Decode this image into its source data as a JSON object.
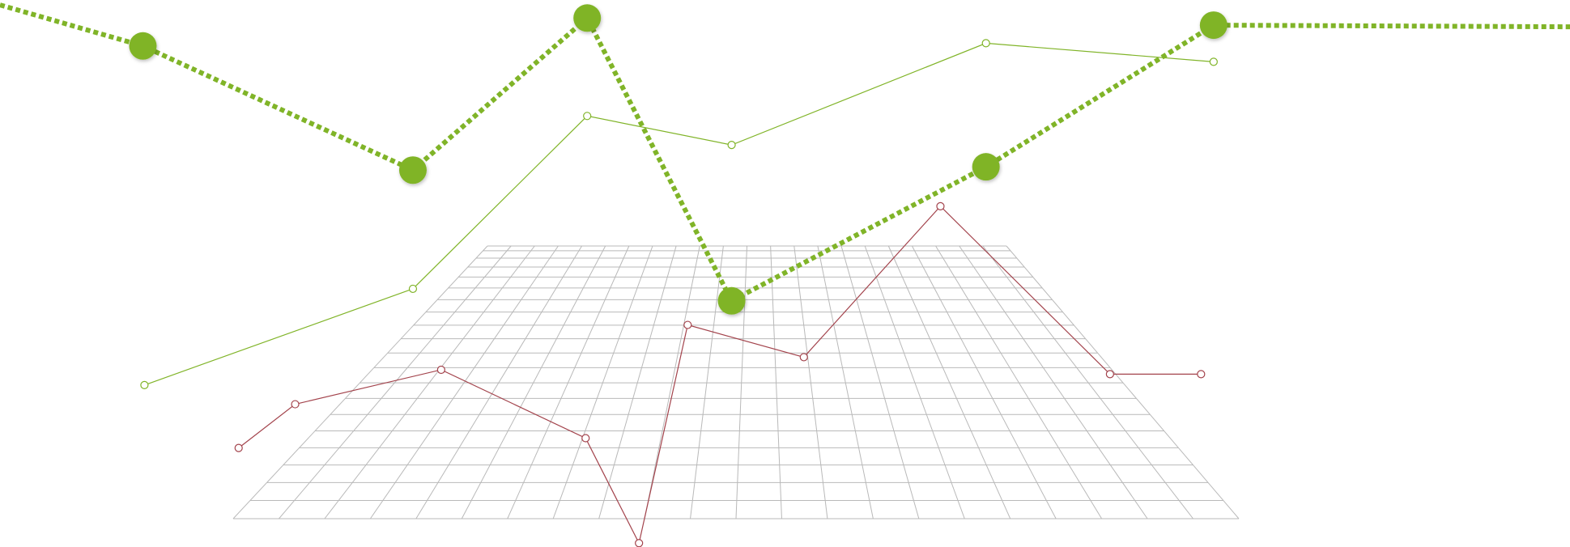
{
  "chart_data": {
    "type": "line",
    "xlim": [
      0,
      100
    ],
    "ylim": [
      0,
      100
    ],
    "series": [
      {
        "color": "#80b428",
        "dashed": true,
        "marker": "filled",
        "x": [
          0,
          9.1,
          26.3,
          37.4,
          46.6,
          62.8,
          77.3,
          100
        ],
        "values": [
          99.1,
          91.6,
          68.9,
          96.7,
          45.0,
          69.5,
          95.4,
          95.1
        ]
      },
      {
        "color": "#80b428",
        "dashed": false,
        "marker": "hollow",
        "x": [
          9.2,
          26.3,
          37.4,
          46.6,
          62.8,
          77.3
        ],
        "values": [
          29.6,
          47.2,
          78.8,
          73.5,
          92.1,
          88.7
        ]
      },
      {
        "color": "#a3434c",
        "dashed": false,
        "marker": "hollow",
        "x": [
          15.2,
          18.8,
          28.1,
          37.3,
          40.7,
          43.8,
          51.2,
          59.9,
          70.7,
          76.5
        ],
        "values": [
          18.1,
          26.1,
          32.4,
          19.9,
          0.7,
          40.6,
          34.7,
          62.3,
          31.6,
          31.6
        ]
      }
    ]
  }
}
